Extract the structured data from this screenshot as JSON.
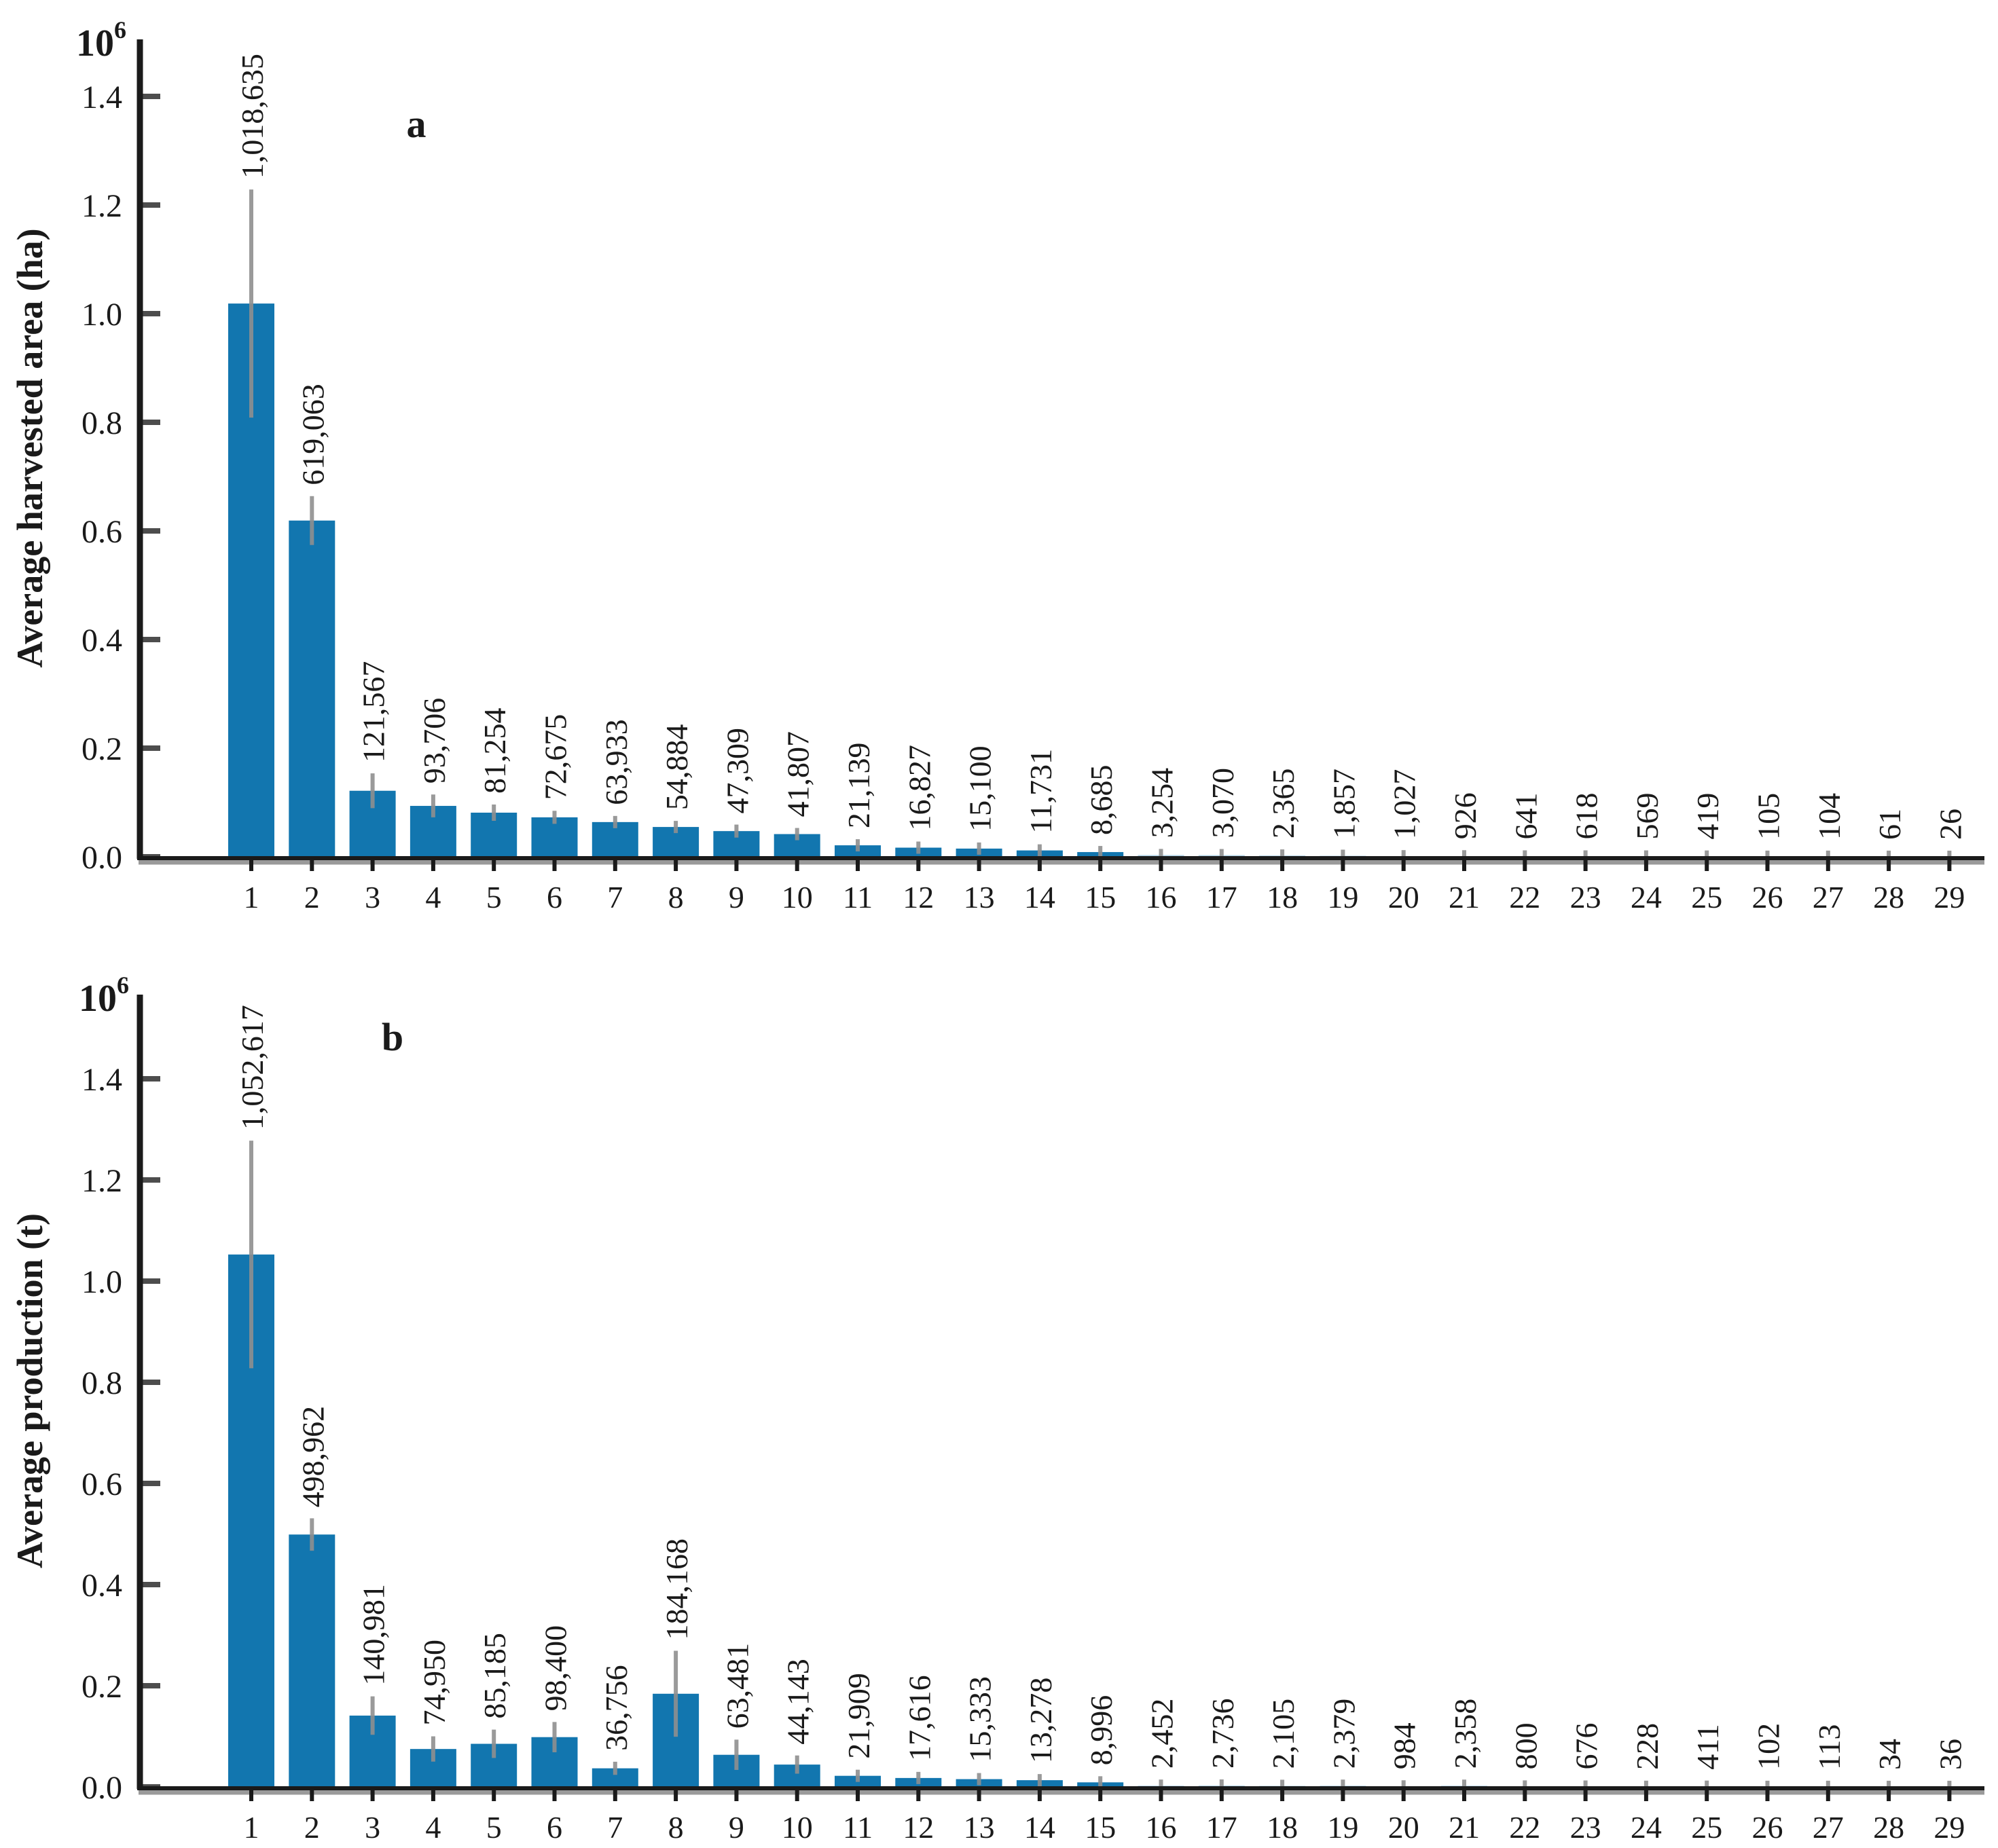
{
  "figure": {
    "background": "#ffffff",
    "description_visible_text_only": true
  },
  "colors": {
    "bar": "#1276af",
    "bar_muted": "#b5d5e8",
    "error_bar": "#8f8f8f",
    "axis": "#1a1a1a",
    "axis_shadow": "#9a9a9a",
    "tick": "#4d4d4d",
    "text": "#1a1a1a"
  },
  "chart_data": [
    {
      "id": "a",
      "type": "bar",
      "panel_label": "a",
      "ylabel": "Average harvested area (ha)",
      "y_scale_label": {
        "base": "10",
        "exponent": "6"
      },
      "grid": false,
      "legend": null,
      "ylim": [
        0,
        1550000
      ],
      "y_tick_labels": [
        "0.0",
        "0.2",
        "0.4",
        "0.6",
        "0.8",
        "1.0",
        "1.2",
        "1.4"
      ],
      "y_tick_values": [
        0,
        200000,
        400000,
        600000,
        800000,
        1000000,
        1200000,
        1400000
      ],
      "categories": [
        "1",
        "2",
        "3",
        "4",
        "5",
        "6",
        "7",
        "8",
        "9",
        "10",
        "11",
        "12",
        "13",
        "14",
        "15",
        "16",
        "17",
        "18",
        "19",
        "20",
        "21",
        "22",
        "23",
        "24",
        "25",
        "26",
        "27",
        "28",
        "29"
      ],
      "values": [
        1018635,
        619063,
        121567,
        93706,
        81254,
        72675,
        63933,
        54884,
        47309,
        41807,
        21139,
        16827,
        15100,
        11731,
        8685,
        3254,
        3070,
        2365,
        1857,
        1027,
        926,
        641,
        618,
        569,
        419,
        105,
        104,
        61,
        26
      ],
      "value_labels": [
        "1,018,635",
        "619,063",
        "121,567",
        "93,706",
        "81,254",
        "72,675",
        "63,933",
        "54,884",
        "47,309",
        "41,807",
        "21,139",
        "16,827",
        "15,100",
        "11,731",
        "8,685",
        "3,254",
        "3,070",
        "2,365",
        "1,857",
        "1,027",
        "926",
        "641",
        "618",
        "569",
        "419",
        "105",
        "104",
        "61",
        "26"
      ],
      "errors_upper_est": [
        210000,
        45000,
        32000,
        21000,
        15000,
        12000,
        11000,
        10000,
        12000,
        8000,
        5000,
        4000,
        3500,
        3000,
        2500,
        1600,
        1500,
        1200,
        1000,
        800,
        700,
        500,
        450,
        400,
        300,
        150,
        120,
        80,
        40
      ],
      "muted_from_rank": 16
    },
    {
      "id": "b",
      "type": "bar",
      "panel_label": "b",
      "ylabel": "Average production (t)",
      "y_scale_label": {
        "base": "10",
        "exponent": "6"
      },
      "grid": false,
      "legend": null,
      "ylim": [
        0,
        1550000
      ],
      "y_tick_labels": [
        "0.0",
        "0.2",
        "0.4",
        "0.6",
        "0.8",
        "1.0",
        "1.2",
        "1.4"
      ],
      "y_tick_values": [
        0,
        200000,
        400000,
        600000,
        800000,
        1000000,
        1200000,
        1400000
      ],
      "categories": [
        "1",
        "2",
        "3",
        "4",
        "5",
        "6",
        "7",
        "8",
        "9",
        "10",
        "11",
        "12",
        "13",
        "14",
        "15",
        "16",
        "17",
        "18",
        "19",
        "20",
        "21",
        "22",
        "23",
        "24",
        "25",
        "26",
        "27",
        "28",
        "29"
      ],
      "values": [
        1052617,
        498962,
        140981,
        74950,
        85185,
        98400,
        36756,
        184168,
        63481,
        44143,
        21909,
        17616,
        15333,
        13278,
        8996,
        2452,
        2736,
        2105,
        2379,
        984,
        2358,
        800,
        676,
        228,
        411,
        102,
        113,
        34,
        36
      ],
      "value_labels": [
        "1,052,617",
        "498,962",
        "140,981",
        "74,950",
        "85,185",
        "98,400",
        "36,756",
        "184,168",
        "63,481",
        "44,143",
        "21,909",
        "17,616",
        "15,333",
        "13,278",
        "8,996",
        "2,452",
        "2,736",
        "2,105",
        "2,379",
        "984",
        "2,358",
        "800",
        "676",
        "228",
        "411",
        "102",
        "113",
        "34",
        "36"
      ],
      "errors_upper_est": [
        225000,
        32000,
        38000,
        25000,
        28000,
        30000,
        13000,
        85000,
        30000,
        18000,
        6000,
        5000,
        4200,
        4000,
        3000,
        1600,
        1700,
        1400,
        1500,
        700,
        1500,
        550,
        450,
        200,
        280,
        90,
        100,
        30,
        30
      ],
      "muted_from_rank": 16
    }
  ]
}
